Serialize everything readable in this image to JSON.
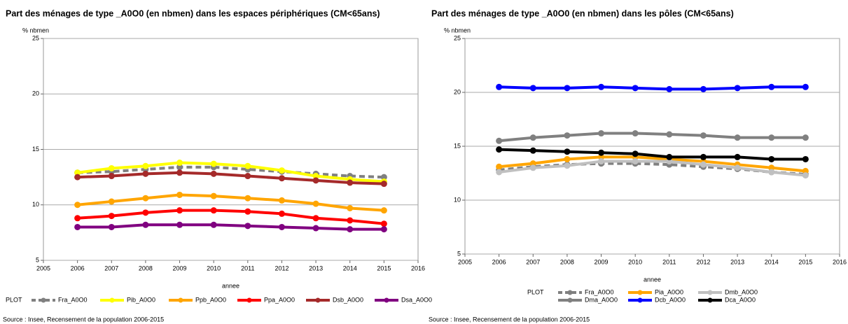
{
  "chart_data": [
    {
      "type": "line",
      "title": "Part des ménages de type _A0O0 (en nbmen) dans les espaces périphériques (CM<65ans)",
      "y_label": "% nbmen",
      "x_label": "annee",
      "legend_title": "PLOT",
      "source": "Source : Insee, Recensement de la population 2006-2015",
      "x": [
        2006,
        2007,
        2008,
        2009,
        2010,
        2011,
        2012,
        2013,
        2014,
        2015
      ],
      "xlim": [
        2005,
        2016
      ],
      "xticks": [
        2005,
        2006,
        2007,
        2008,
        2009,
        2010,
        2011,
        2012,
        2013,
        2014,
        2015,
        2016
      ],
      "ylim": [
        5,
        25
      ],
      "yticks": [
        5,
        10,
        15,
        20,
        25
      ],
      "grid": true,
      "series": [
        {
          "name": "Fra_A0O0",
          "color": "#808080",
          "dashed": true,
          "values": [
            12.9,
            13.0,
            13.2,
            13.4,
            13.4,
            13.2,
            13.0,
            12.8,
            12.6,
            12.5
          ]
        },
        {
          "name": "Pib_A0O0",
          "color": "#ffff00",
          "values": [
            12.9,
            13.3,
            13.5,
            13.8,
            13.7,
            13.5,
            13.1,
            12.6,
            12.3,
            12.1
          ]
        },
        {
          "name": "Ppb_A0O0",
          "color": "#ffa500",
          "values": [
            10.0,
            10.3,
            10.6,
            10.9,
            10.8,
            10.6,
            10.4,
            10.1,
            9.7,
            9.5
          ]
        },
        {
          "name": "Ppa_A0O0",
          "color": "#ff0000",
          "values": [
            8.8,
            9.0,
            9.3,
            9.5,
            9.5,
            9.4,
            9.2,
            8.8,
            8.6,
            8.3
          ]
        },
        {
          "name": "Dsb_A0O0",
          "color": "#a52a2a",
          "values": [
            12.5,
            12.6,
            12.8,
            12.9,
            12.8,
            12.6,
            12.4,
            12.2,
            12.0,
            11.9
          ]
        },
        {
          "name": "Dsa_A0O0",
          "color": "#800080",
          "values": [
            8.0,
            8.0,
            8.2,
            8.2,
            8.2,
            8.1,
            8.0,
            7.9,
            7.8,
            7.8
          ]
        }
      ]
    },
    {
      "type": "line",
      "title": "Part des ménages de type _A0O0 (en nbmen) dans les pôles (CM<65ans)",
      "y_label": "% nbmen",
      "x_label": "annee",
      "legend_title": "PLOT",
      "source": "Source : Insee, Recensement de la population 2006-2015",
      "x": [
        2006,
        2007,
        2008,
        2009,
        2010,
        2011,
        2012,
        2013,
        2014,
        2015
      ],
      "xlim": [
        2005,
        2016
      ],
      "xticks": [
        2005,
        2006,
        2007,
        2008,
        2009,
        2010,
        2011,
        2012,
        2013,
        2014,
        2015,
        2016
      ],
      "ylim": [
        5,
        25
      ],
      "yticks": [
        5,
        10,
        15,
        20,
        25
      ],
      "grid": true,
      "series": [
        {
          "name": "Fra_A0O0",
          "color": "#808080",
          "dashed": true,
          "values": [
            12.8,
            13.1,
            13.3,
            13.4,
            13.4,
            13.3,
            13.1,
            12.9,
            12.6,
            12.4
          ]
        },
        {
          "name": "Pia_A0O0",
          "color": "#ffa500",
          "values": [
            13.1,
            13.4,
            13.8,
            14.0,
            14.0,
            13.8,
            13.6,
            13.3,
            13.0,
            12.7
          ]
        },
        {
          "name": "Dmb_A0O0",
          "color": "#c0c0c0",
          "values": [
            12.6,
            13.0,
            13.2,
            13.6,
            13.6,
            13.6,
            13.3,
            13.0,
            12.6,
            12.3
          ]
        },
        {
          "name": "Dma_A0O0",
          "color": "#808080",
          "values": [
            15.5,
            15.8,
            16.0,
            16.2,
            16.2,
            16.1,
            16.0,
            15.8,
            15.8,
            15.8
          ]
        },
        {
          "name": "Dcb_A0O0",
          "color": "#0000ff",
          "values": [
            20.5,
            20.4,
            20.4,
            20.5,
            20.4,
            20.3,
            20.3,
            20.4,
            20.5,
            20.5
          ]
        },
        {
          "name": "Dca_A0O0",
          "color": "#000000",
          "values": [
            14.7,
            14.6,
            14.5,
            14.4,
            14.3,
            14.0,
            14.0,
            14.0,
            13.8,
            13.8
          ]
        }
      ]
    }
  ]
}
